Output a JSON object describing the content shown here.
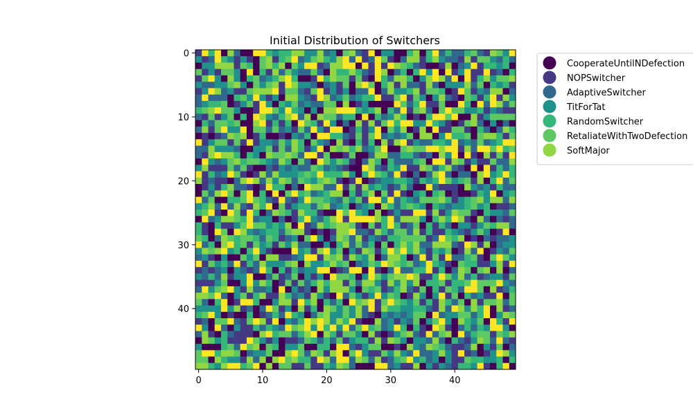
{
  "chart_data": {
    "type": "heatmap",
    "title": "Initial Distribution of Switchers",
    "xlabel": "",
    "ylabel": "",
    "grid_size": [
      50,
      50
    ],
    "xlim": [
      -0.5,
      49.5
    ],
    "ylim": [
      49.5,
      -0.5
    ],
    "x_ticks": [
      0,
      10,
      20,
      30,
      40
    ],
    "y_ticks": [
      0,
      10,
      20,
      30,
      40
    ],
    "x_tick_labels": [
      "0",
      "10",
      "20",
      "30",
      "40"
    ],
    "y_tick_labels": [
      "0",
      "10",
      "20",
      "30",
      "40"
    ],
    "grid": false,
    "legend_placement": "outside-top-right",
    "colormap": "viridis",
    "categories": [
      {
        "name": "CooperateUntilNDefection",
        "color": "#440154"
      },
      {
        "name": "NOPSwitcher",
        "color": "#443983"
      },
      {
        "name": "AdaptiveSwitcher",
        "color": "#31688e"
      },
      {
        "name": "TitForTat",
        "color": "#21918c"
      },
      {
        "name": "RandomSwitcher",
        "color": "#35b779"
      },
      {
        "name": "RetaliateWithTwoDefection",
        "color": "#5ec962"
      },
      {
        "name": "SoftMajor",
        "color": "#90d743"
      }
    ],
    "extra_color": "#fde725",
    "random_seed": 7
  }
}
